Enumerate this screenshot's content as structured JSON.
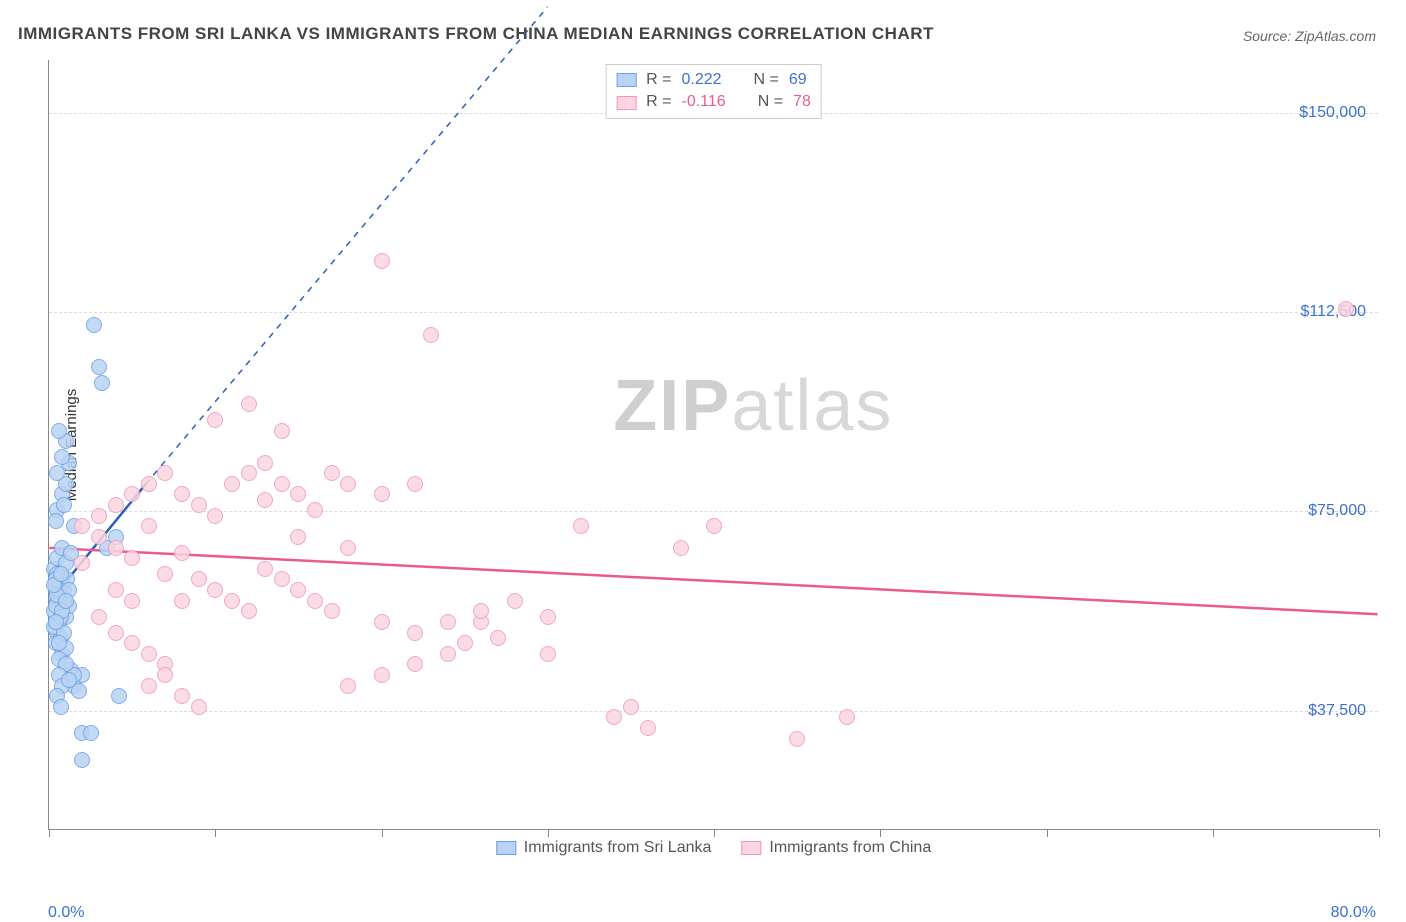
{
  "title": "IMMIGRANTS FROM SRI LANKA VS IMMIGRANTS FROM CHINA MEDIAN EARNINGS CORRELATION CHART",
  "source_label": "Source: ZipAtlas.com",
  "watermark": {
    "bold": "ZIP",
    "light": "atlas"
  },
  "chart": {
    "type": "scatter",
    "y_axis_label": "Median Earnings",
    "x_min_label": "0.0%",
    "x_max_label": "80.0%",
    "xlim": [
      0,
      80
    ],
    "ylim": [
      15000,
      160000
    ],
    "y_gridlines": [
      37500,
      75000,
      112500,
      150000
    ],
    "y_tick_labels": [
      "$37,500",
      "$75,000",
      "$112,500",
      "$150,000"
    ],
    "x_tick_positions": [
      0,
      10,
      20,
      30,
      40,
      50,
      60,
      70,
      80
    ],
    "background_color": "#ffffff",
    "grid_color": "#dddddd",
    "axis_color": "#888888",
    "tick_label_color": "#3b6fd4",
    "marker_radius": 8,
    "marker_fill_opacity": 0.25,
    "series": [
      {
        "name": "Immigrants from Sri Lanka",
        "color_stroke": "#6aa0e8",
        "color_fill": "#b9d3f3",
        "trend_color": "#2d5fb8",
        "R": "0.222",
        "N": "69",
        "trend_line": {
          "x1": 0.3,
          "y1": 59000,
          "x2": 5.8,
          "y2": 80000
        },
        "trend_dash": {
          "x1": 5.8,
          "y1": 80000,
          "x2": 30,
          "y2": 170000
        },
        "points": [
          [
            0.4,
            60000
          ],
          [
            0.6,
            62000
          ],
          [
            0.5,
            58000
          ],
          [
            0.8,
            61000
          ],
          [
            1.0,
            55000
          ],
          [
            0.3,
            64000
          ],
          [
            0.7,
            59000
          ],
          [
            0.5,
            52000
          ],
          [
            0.9,
            60000
          ],
          [
            1.2,
            57000
          ],
          [
            0.4,
            50000
          ],
          [
            0.6,
            54000
          ],
          [
            0.8,
            48000
          ],
          [
            1.1,
            62000
          ],
          [
            0.3,
            56000
          ],
          [
            0.5,
            63000
          ],
          [
            0.7,
            51000
          ],
          [
            0.9,
            58000
          ],
          [
            1.0,
            49000
          ],
          [
            0.4,
            57000
          ],
          [
            0.6,
            60000
          ],
          [
            1.3,
            45000
          ],
          [
            1.5,
            42000
          ],
          [
            2.0,
            44000
          ],
          [
            0.5,
            66000
          ],
          [
            0.8,
            68000
          ],
          [
            0.3,
            53000
          ],
          [
            0.6,
            47000
          ],
          [
            1.0,
            65000
          ],
          [
            0.4,
            62000
          ],
          [
            0.7,
            55000
          ],
          [
            0.9,
            52000
          ],
          [
            1.2,
            60000
          ],
          [
            0.5,
            59000
          ],
          [
            0.8,
            56000
          ],
          [
            0.3,
            61000
          ],
          [
            0.6,
            50000
          ],
          [
            1.0,
            58000
          ],
          [
            0.4,
            54000
          ],
          [
            0.7,
            63000
          ],
          [
            0.5,
            75000
          ],
          [
            0.8,
            78000
          ],
          [
            1.0,
            80000
          ],
          [
            0.5,
            82000
          ],
          [
            1.2,
            84000
          ],
          [
            3.5,
            68000
          ],
          [
            4.0,
            70000
          ],
          [
            2.7,
            110000
          ],
          [
            1.5,
            72000
          ],
          [
            0.8,
            85000
          ],
          [
            1.0,
            88000
          ],
          [
            3.0,
            102000
          ],
          [
            3.2,
            99000
          ],
          [
            0.6,
            90000
          ],
          [
            0.9,
            76000
          ],
          [
            1.3,
            67000
          ],
          [
            0.4,
            73000
          ],
          [
            2.0,
            33000
          ],
          [
            2.5,
            33000
          ],
          [
            2.0,
            28000
          ],
          [
            1.5,
            44000
          ],
          [
            1.8,
            41000
          ],
          [
            4.2,
            40000
          ],
          [
            1.0,
            46000
          ],
          [
            0.6,
            44000
          ],
          [
            0.8,
            42000
          ],
          [
            0.5,
            40000
          ],
          [
            0.7,
            38000
          ],
          [
            1.2,
            43000
          ]
        ]
      },
      {
        "name": "Immigrants from China",
        "color_stroke": "#f19ab8",
        "color_fill": "#fbd5e1",
        "trend_color": "#ea5a8f",
        "R": "-0.116",
        "N": "78",
        "trend_line": {
          "x1": 0,
          "y1": 68000,
          "x2": 80,
          "y2": 55500
        },
        "trend_dash": null,
        "points": [
          [
            2,
            65000
          ],
          [
            3,
            70000
          ],
          [
            4,
            68000
          ],
          [
            5,
            66000
          ],
          [
            6,
            72000
          ],
          [
            7,
            63000
          ],
          [
            8,
            67000
          ],
          [
            4,
            60000
          ],
          [
            5,
            58000
          ],
          [
            6,
            80000
          ],
          [
            7,
            82000
          ],
          [
            8,
            78000
          ],
          [
            9,
            76000
          ],
          [
            10,
            74000
          ],
          [
            11,
            80000
          ],
          [
            12,
            82000
          ],
          [
            13,
            84000
          ],
          [
            13,
            77000
          ],
          [
            14,
            80000
          ],
          [
            15,
            78000
          ],
          [
            16,
            75000
          ],
          [
            17,
            82000
          ],
          [
            18,
            80000
          ],
          [
            20,
            78000
          ],
          [
            22,
            80000
          ],
          [
            24,
            54000
          ],
          [
            26,
            54000
          ],
          [
            10,
            92000
          ],
          [
            20,
            122000
          ],
          [
            12,
            95000
          ],
          [
            14,
            90000
          ],
          [
            15,
            70000
          ],
          [
            18,
            68000
          ],
          [
            20,
            54000
          ],
          [
            22,
            52000
          ],
          [
            24,
            48000
          ],
          [
            26,
            56000
          ],
          [
            28,
            58000
          ],
          [
            27,
            51000
          ],
          [
            25,
            50000
          ],
          [
            30,
            55000
          ],
          [
            30,
            48000
          ],
          [
            32,
            72000
          ],
          [
            34,
            36000
          ],
          [
            35,
            38000
          ],
          [
            38,
            68000
          ],
          [
            36,
            34000
          ],
          [
            40,
            72000
          ],
          [
            45,
            32000
          ],
          [
            48,
            36000
          ],
          [
            18,
            42000
          ],
          [
            20,
            44000
          ],
          [
            22,
            46000
          ],
          [
            23,
            108000
          ],
          [
            78,
            113000
          ],
          [
            3,
            55000
          ],
          [
            4,
            52000
          ],
          [
            5,
            50000
          ],
          [
            6,
            48000
          ],
          [
            7,
            46000
          ],
          [
            8,
            58000
          ],
          [
            9,
            62000
          ],
          [
            10,
            60000
          ],
          [
            11,
            58000
          ],
          [
            12,
            56000
          ],
          [
            13,
            64000
          ],
          [
            14,
            62000
          ],
          [
            15,
            60000
          ],
          [
            16,
            58000
          ],
          [
            17,
            56000
          ],
          [
            2,
            72000
          ],
          [
            3,
            74000
          ],
          [
            4,
            76000
          ],
          [
            5,
            78000
          ],
          [
            6,
            42000
          ],
          [
            7,
            44000
          ],
          [
            8,
            40000
          ],
          [
            9,
            38000
          ]
        ]
      }
    ]
  },
  "stats_box": {
    "R_label": "R  =",
    "N_label": "N  ="
  }
}
